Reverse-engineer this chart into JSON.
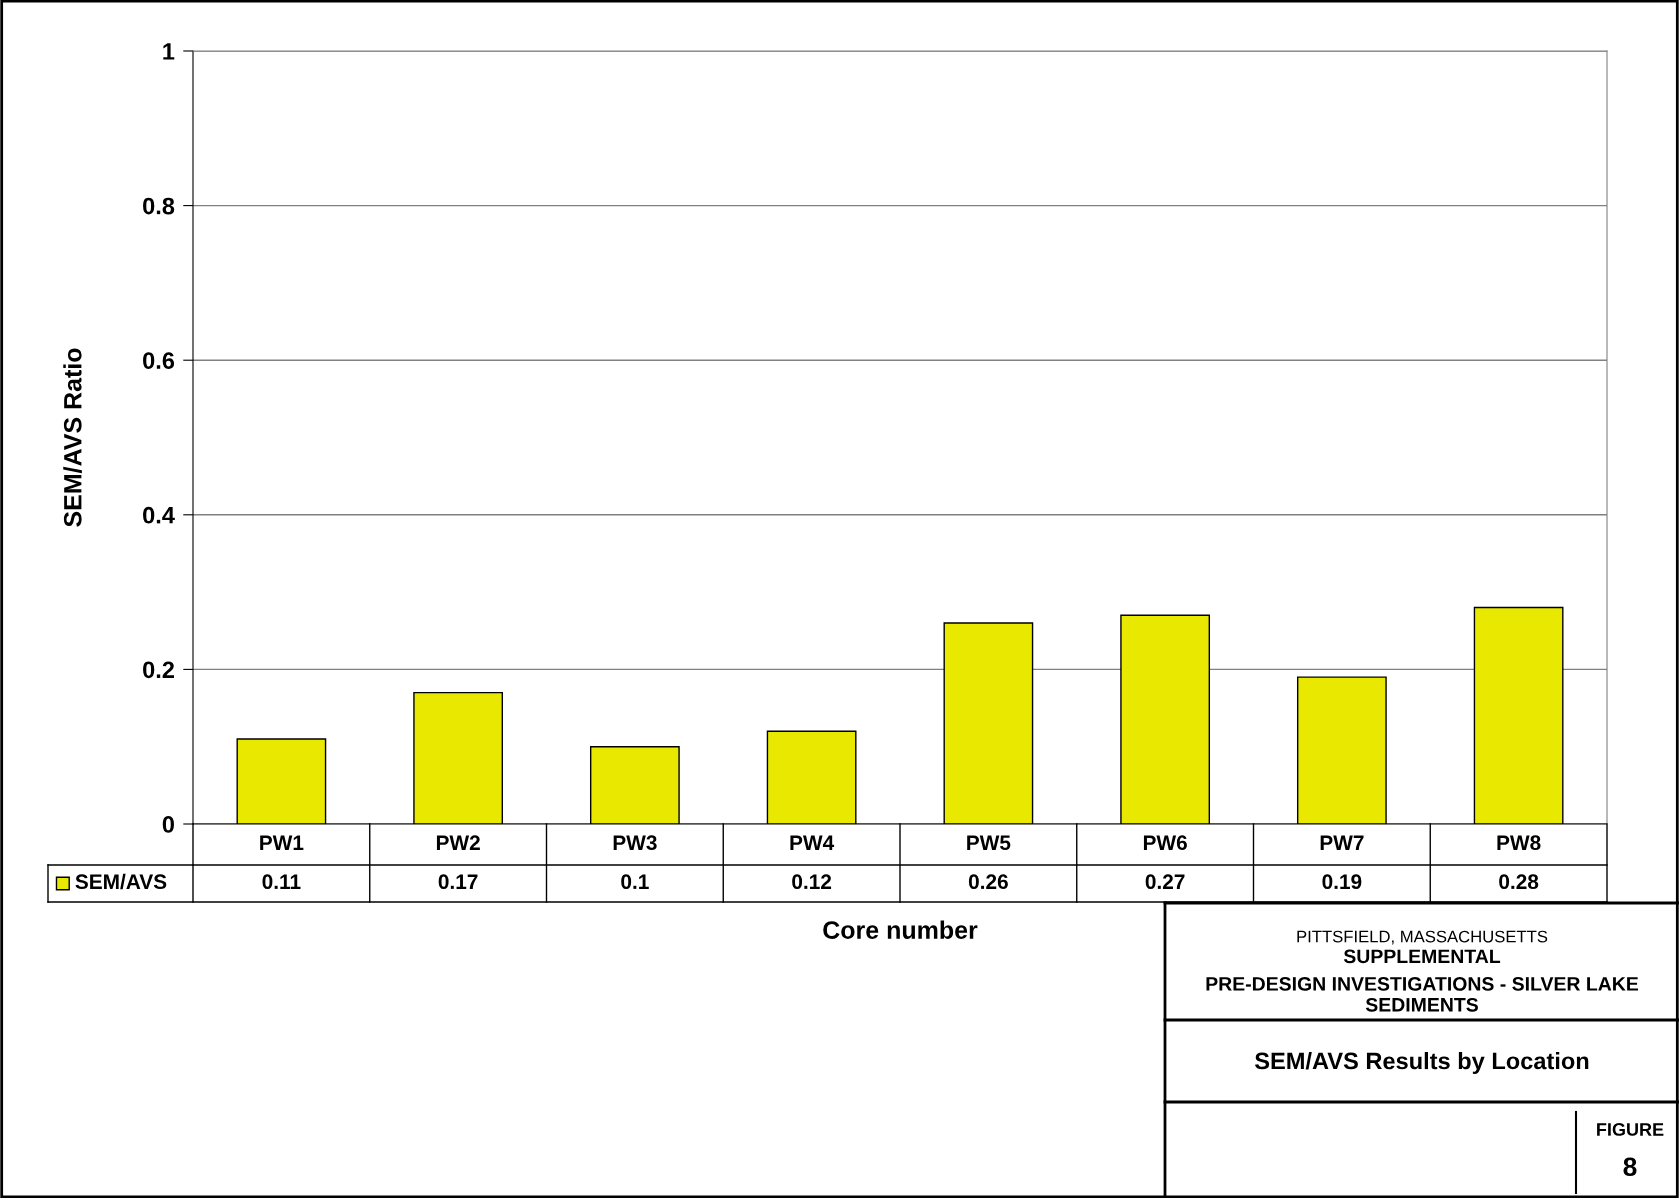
{
  "chart_data": {
    "type": "bar",
    "title": "SEM/AVS Results by Location",
    "xlabel": "Core number",
    "ylabel": "SEM/AVS Ratio",
    "categories": [
      "PW1",
      "PW2",
      "PW3",
      "PW4",
      "PW5",
      "PW6",
      "PW7",
      "PW8"
    ],
    "series": [
      {
        "name": "SEM/AVS",
        "color": "#e8e800",
        "values": [
          0.11,
          0.17,
          0.1,
          0.12,
          0.26,
          0.27,
          0.19,
          0.28
        ]
      }
    ],
    "ylim": [
      0,
      1
    ],
    "yticks": [
      0,
      0.2,
      0.4,
      0.6,
      0.8,
      1
    ],
    "grid": "y",
    "legend": "bottom left",
    "data_labels": true,
    "annotations": [
      "PITTSFIELD, MASSACHUSETTS",
      "SUPPLEMENTAL",
      "PRE-DESIGN INVESTIGATIONS - SILVER LAKE\nSEDIMENTS",
      "FIGURE",
      "8"
    ]
  }
}
